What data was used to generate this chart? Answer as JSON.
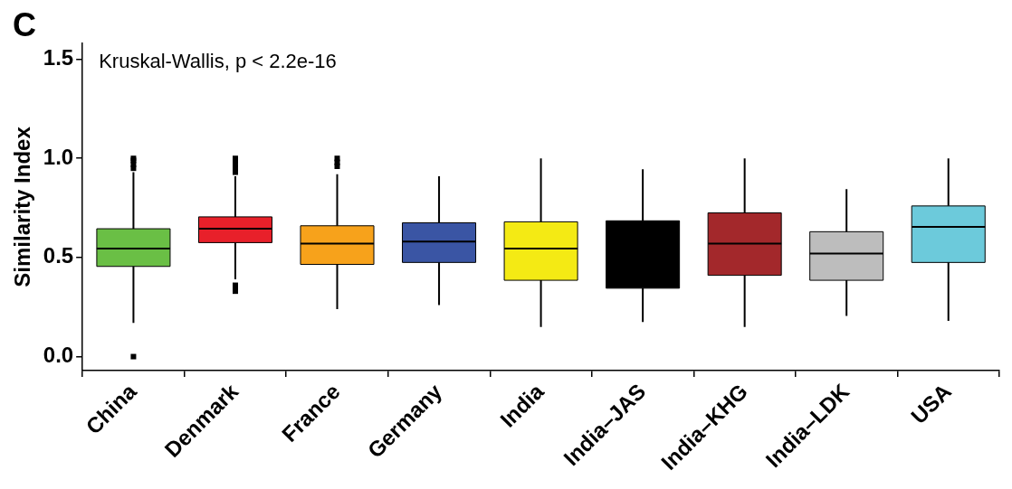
{
  "chart_data": {
    "type": "box",
    "ylabel": "Similarity Index",
    "categories": [
      "China",
      "Denmark",
      "France",
      "Germany",
      "India",
      "India–JAS",
      "India–KHG",
      "India–LDK",
      "USA"
    ],
    "colors": [
      "#6abf45",
      "#e8202a",
      "#f7a21b",
      "#3a55a4",
      "#f4ea14",
      "#000000",
      "#a3282b",
      "#bdbdbd",
      "#6ccadb"
    ],
    "boxes": [
      {
        "low": 0.17,
        "q1": 0.455,
        "median": 0.545,
        "q3": 0.645,
        "high": 0.93,
        "outliers": [
          0.0,
          0.95,
          0.97,
          0.99,
          1.0
        ]
      },
      {
        "low": 0.39,
        "q1": 0.575,
        "median": 0.645,
        "q3": 0.705,
        "high": 0.91,
        "outliers": [
          0.33,
          0.35,
          0.36,
          0.93,
          0.95,
          0.97,
          0.99,
          1.0
        ]
      },
      {
        "low": 0.24,
        "q1": 0.465,
        "median": 0.57,
        "q3": 0.66,
        "high": 0.92,
        "outliers": [
          0.96,
          0.98,
          1.0
        ]
      },
      {
        "low": 0.26,
        "q1": 0.475,
        "median": 0.58,
        "q3": 0.675,
        "high": 0.91
      },
      {
        "low": 0.15,
        "q1": 0.385,
        "median": 0.545,
        "q3": 0.68,
        "high": 1.0
      },
      {
        "low": 0.175,
        "q1": 0.345,
        "median": 0.68,
        "q3": 0.685,
        "high": 0.945
      },
      {
        "low": 0.15,
        "q1": 0.41,
        "median": 0.57,
        "q3": 0.725,
        "high": 1.0
      },
      {
        "low": 0.205,
        "q1": 0.385,
        "median": 0.52,
        "q3": 0.63,
        "high": 0.845
      },
      {
        "low": 0.18,
        "q1": 0.475,
        "median": 0.655,
        "q3": 0.76,
        "high": 1.0
      }
    ],
    "ylim": [
      -0.07,
      1.58
    ],
    "yticks": [
      {
        "value": 0,
        "label": "0.0"
      },
      {
        "value": 0.5,
        "label": "0.5"
      },
      {
        "value": 1,
        "label": "1.0"
      },
      {
        "value": 1.5,
        "label": "1.5"
      }
    ],
    "grid": false,
    "legend": false,
    "annotations": [
      "C",
      "Kruskal-Wallis, p < 2.2e-16"
    ]
  }
}
